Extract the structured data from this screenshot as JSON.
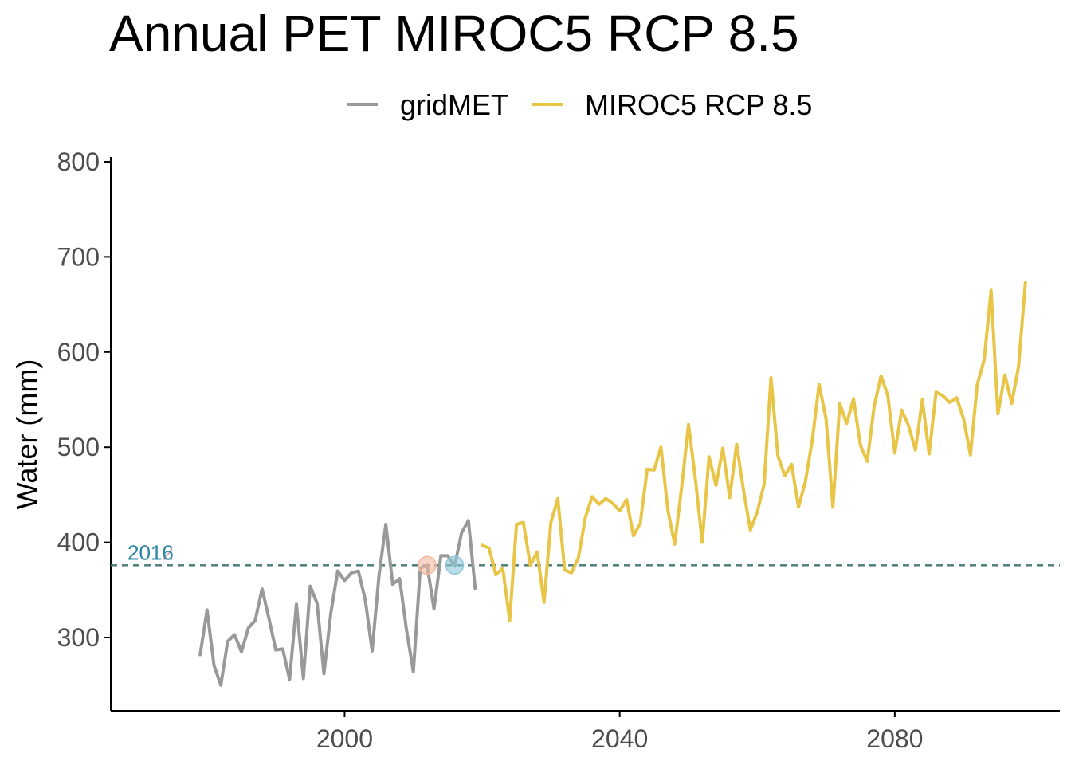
{
  "chart_data": {
    "type": "line",
    "title": "Annual PET MIROC5 RCP 8.5",
    "xlabel": "",
    "ylabel": "Water (mm)",
    "xlim": [
      1966,
      2104
    ],
    "ylim": [
      223,
      805
    ],
    "x_ticks": [
      2000,
      2040,
      2080
    ],
    "y_ticks": [
      300,
      400,
      500,
      600,
      700,
      800
    ],
    "grid": false,
    "legend_position": "top",
    "reference_line": {
      "y": 376,
      "style": "dashed",
      "color": "#4a7a7a"
    },
    "annotations": [
      {
        "label": "2012",
        "color": "#d9a0a8",
        "marker_x": 2012,
        "marker_y": 376,
        "marker_fill": "#f2b8a0"
      },
      {
        "label": "2016",
        "color": "#2a8aa8",
        "marker_x": 2016,
        "marker_y": 376,
        "marker_fill": "#8ec8da"
      }
    ],
    "series": [
      {
        "name": "gridMET",
        "color": "#999999",
        "x": [
          1979,
          1980,
          1981,
          1982,
          1983,
          1984,
          1985,
          1986,
          1987,
          1988,
          1989,
          1990,
          1991,
          1992,
          1993,
          1994,
          1995,
          1996,
          1997,
          1998,
          1999,
          2000,
          2001,
          2002,
          2003,
          2004,
          2005,
          2006,
          2007,
          2008,
          2009,
          2010,
          2011,
          2012,
          2013,
          2014,
          2015,
          2016,
          2017,
          2018,
          2019
        ],
        "y": [
          282,
          329,
          271,
          250,
          296,
          303,
          285,
          310,
          318,
          351,
          320,
          287,
          288,
          256,
          335,
          257,
          354,
          336,
          262,
          326,
          370,
          360,
          368,
          370,
          340,
          286,
          365,
          419,
          356,
          362,
          308,
          264,
          373,
          376,
          330,
          386,
          386,
          375,
          410,
          423,
          351
        ]
      },
      {
        "name": "MIROC5 RCP 8.5",
        "color": "#e8c547",
        "x": [
          2020,
          2021,
          2022,
          2023,
          2024,
          2025,
          2026,
          2027,
          2028,
          2029,
          2030,
          2031,
          2032,
          2033,
          2034,
          2035,
          2036,
          2037,
          2038,
          2039,
          2040,
          2041,
          2042,
          2043,
          2044,
          2045,
          2046,
          2047,
          2048,
          2049,
          2050,
          2051,
          2052,
          2053,
          2054,
          2055,
          2056,
          2057,
          2058,
          2059,
          2060,
          2061,
          2062,
          2063,
          2064,
          2065,
          2066,
          2067,
          2068,
          2069,
          2070,
          2071,
          2072,
          2073,
          2074,
          2075,
          2076,
          2077,
          2078,
          2079,
          2080,
          2081,
          2082,
          2083,
          2084,
          2085,
          2086,
          2087,
          2088,
          2089,
          2090,
          2091,
          2092,
          2093,
          2094,
          2095,
          2096,
          2097,
          2098,
          2099
        ],
        "y": [
          397,
          394,
          366,
          373,
          318,
          419,
          421,
          376,
          390,
          337,
          421,
          446,
          371,
          368,
          384,
          426,
          448,
          440,
          446,
          441,
          433,
          445,
          407,
          420,
          477,
          476,
          500,
          434,
          398,
          457,
          524,
          467,
          400,
          490,
          460,
          499,
          447,
          503,
          455,
          413,
          432,
          461,
          573,
          491,
          470,
          482,
          437,
          464,
          507,
          566,
          530,
          437,
          546,
          525,
          551,
          502,
          485,
          543,
          575,
          554,
          494,
          539,
          523,
          497,
          550,
          493,
          558,
          554,
          547,
          552,
          530,
          492,
          566,
          592,
          665,
          535,
          576,
          546,
          585,
          673
        ]
      }
    ]
  }
}
